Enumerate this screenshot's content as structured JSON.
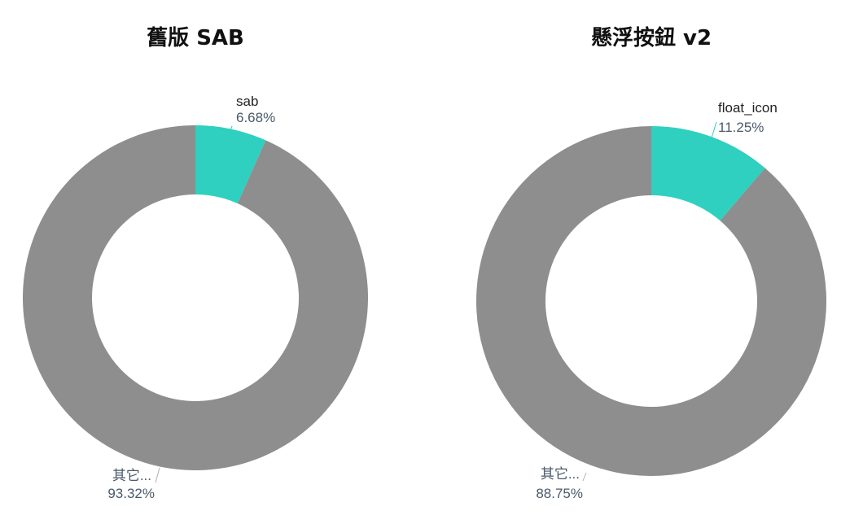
{
  "colors": {
    "highlight": "#2fd0bf",
    "other": "#8e8e8e",
    "label_name": "#222222",
    "label_other_name": "#4a5a6a",
    "leader": "#b0b0b0"
  },
  "chart_data": [
    {
      "type": "pie",
      "variant": "donut",
      "title": "舊版 SAB",
      "slices": [
        {
          "label": "sab",
          "value": 6.68,
          "pct_text": "6.68%"
        },
        {
          "label": "其它...",
          "value": 93.32,
          "pct_text": "93.32%"
        }
      ]
    },
    {
      "type": "pie",
      "variant": "donut",
      "title": "懸浮按鈕 v2",
      "slices": [
        {
          "label": "float_icon",
          "value": 11.25,
          "pct_text": "11.25%"
        },
        {
          "label": "其它...",
          "value": 88.75,
          "pct_text": "88.75%"
        }
      ]
    }
  ]
}
